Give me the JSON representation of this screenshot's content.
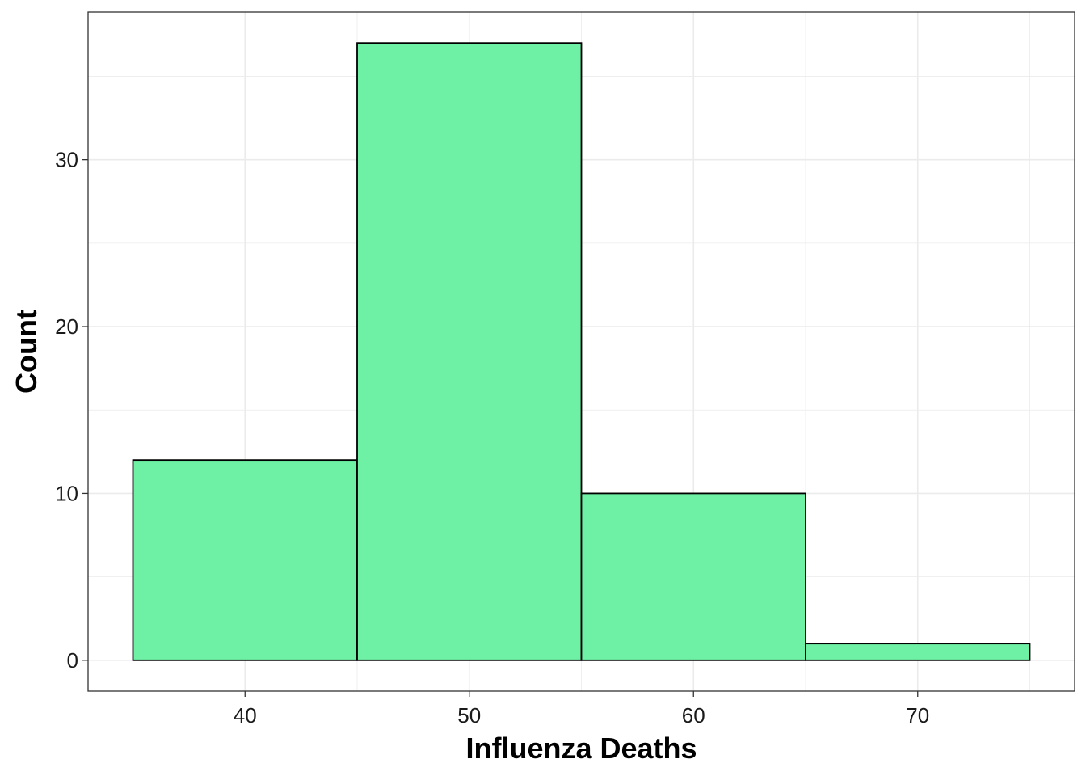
{
  "chart_data": {
    "type": "bar",
    "subtype": "histogram",
    "bins": [
      {
        "start": 35,
        "end": 45,
        "count": 12
      },
      {
        "start": 45,
        "end": 55,
        "count": 37
      },
      {
        "start": 55,
        "end": 65,
        "count": 10
      },
      {
        "start": 65,
        "end": 75,
        "count": 1
      }
    ],
    "xlabel": "Influenza Deaths",
    "ylabel": "Count",
    "xlim": [
      33,
      77
    ],
    "ylim": [
      -1.85,
      38.85
    ],
    "xticks": [
      40,
      50,
      60,
      70
    ],
    "yticks": [
      0,
      10,
      20,
      30
    ],
    "grid": true,
    "fill_color": "#6ef0a5",
    "bar_outline_color": "#000000",
    "grid_color": "#ebebeb"
  }
}
